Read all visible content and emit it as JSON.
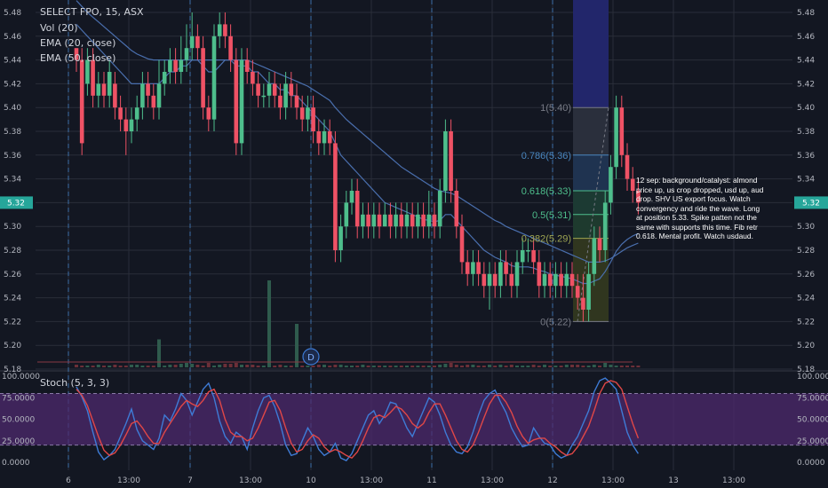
{
  "legend": {
    "symbol": "SELECT FPO, 15, ASX",
    "vol": "Vol (20)",
    "ema20": "EMA (20, close)",
    "ema50": "EMA (50, close)",
    "stoch": "Stoch (5, 3, 3)"
  },
  "colors": {
    "bg": "#131722",
    "grid": "#2a2e39",
    "up": "#4ebe8c",
    "down": "#ef5265",
    "ema": "#4a6fae",
    "stoch_k": "#3e7bd6",
    "stoch_d": "#e04747",
    "stoch_band": "#4d2a6e"
  },
  "price_axis": [
    "5.48",
    "5.46",
    "5.44",
    "5.42",
    "5.40",
    "5.38",
    "5.36",
    "5.34",
    "5.32",
    "5.30",
    "5.28",
    "5.26",
    "5.24",
    "5.22",
    "5.20",
    "5.18"
  ],
  "price_axis_values": [
    5.48,
    5.46,
    5.44,
    5.42,
    5.4,
    5.38,
    5.36,
    5.34,
    5.32,
    5.3,
    5.28,
    5.26,
    5.24,
    5.22,
    5.2,
    5.18
  ],
  "last_price_label": "5.32",
  "stoch_axis": [
    "100.0000",
    "75.0000",
    "50.0000",
    "25.0000",
    "0.0000"
  ],
  "time_axis": [
    "6",
    "13:00",
    "7",
    "13:00",
    "10",
    "13:00",
    "11",
    "13:00",
    "12",
    "13:00",
    "13",
    "13:00"
  ],
  "dividend_marker": "D",
  "fib": [
    {
      "label": "1(5.40)",
      "value": 5.4,
      "color": "#787b86"
    },
    {
      "label": "0.786(5.36)",
      "value": 5.36,
      "color": "#4a87c0"
    },
    {
      "label": "0.618(5.33)",
      "value": 5.33,
      "color": "#4ebe8c"
    },
    {
      "label": "0.5(5.31)",
      "value": 5.31,
      "color": "#4ebe8c"
    },
    {
      "label": "0.382(5.29)",
      "value": 5.29,
      "color": "#9ea552"
    },
    {
      "label": "0(5.22)",
      "value": 5.22,
      "color": "#787b86"
    }
  ],
  "note": "12 sep: background/catalyst: almond price up, us crop dropped, usd up, aud drop. SHV US export focus. Watch convergency and ride the wave. Long at position 5.33. Spike patten not the same with supports this time. Fib retr 0.618. Mental profit. Watch usdaud.",
  "chart_data": {
    "type": "candlestick",
    "y_range": [
      5.18,
      5.48
    ],
    "candles": [
      [
        5.45,
        5.44,
        5.45,
        5.43
      ],
      [
        5.44,
        5.37,
        5.45,
        5.36
      ],
      [
        5.42,
        5.44,
        5.45,
        5.41
      ],
      [
        5.44,
        5.41,
        5.45,
        5.4
      ],
      [
        5.41,
        5.42,
        5.43,
        5.4
      ],
      [
        5.42,
        5.41,
        5.43,
        5.4
      ],
      [
        5.41,
        5.43,
        5.44,
        5.4
      ],
      [
        5.42,
        5.4,
        5.43,
        5.39
      ],
      [
        5.4,
        5.39,
        5.41,
        5.38
      ],
      [
        5.39,
        5.38,
        5.4,
        5.36
      ],
      [
        5.38,
        5.39,
        5.4,
        5.37
      ],
      [
        5.39,
        5.4,
        5.41,
        5.38
      ],
      [
        5.4,
        5.42,
        5.43,
        5.39
      ],
      [
        5.42,
        5.41,
        5.43,
        5.4
      ],
      [
        5.41,
        5.4,
        5.42,
        5.39
      ],
      [
        5.4,
        5.42,
        5.44,
        5.39
      ],
      [
        5.42,
        5.43,
        5.44,
        5.41
      ],
      [
        5.43,
        5.44,
        5.45,
        5.42
      ],
      [
        5.44,
        5.43,
        5.45,
        5.42
      ],
      [
        5.43,
        5.44,
        5.46,
        5.42
      ],
      [
        5.44,
        5.45,
        5.47,
        5.43
      ],
      [
        5.45,
        5.46,
        5.48,
        5.44
      ],
      [
        5.46,
        5.45,
        5.47,
        5.44
      ],
      [
        5.45,
        5.4,
        5.46,
        5.39
      ],
      [
        5.4,
        5.39,
        5.41,
        5.38
      ],
      [
        5.39,
        5.46,
        5.47,
        5.38
      ],
      [
        5.46,
        5.47,
        5.48,
        5.45
      ],
      [
        5.47,
        5.46,
        5.48,
        5.45
      ],
      [
        5.46,
        5.44,
        5.47,
        5.43
      ],
      [
        5.44,
        5.37,
        5.45,
        5.36
      ],
      [
        5.37,
        5.44,
        5.45,
        5.36
      ],
      [
        5.44,
        5.43,
        5.45,
        5.42
      ],
      [
        5.43,
        5.42,
        5.44,
        5.41
      ],
      [
        5.42,
        5.41,
        5.43,
        5.4
      ],
      [
        5.41,
        5.41,
        5.42,
        5.4
      ],
      [
        5.41,
        5.42,
        5.43,
        5.4
      ],
      [
        5.42,
        5.41,
        5.43,
        5.4
      ],
      [
        5.41,
        5.4,
        5.42,
        5.39
      ],
      [
        5.4,
        5.42,
        5.43,
        5.39
      ],
      [
        5.42,
        5.41,
        5.43,
        5.4
      ],
      [
        5.41,
        5.4,
        5.42,
        5.39
      ],
      [
        5.4,
        5.39,
        5.41,
        5.38
      ],
      [
        5.39,
        5.4,
        5.41,
        5.38
      ],
      [
        5.4,
        5.38,
        5.41,
        5.37
      ],
      [
        5.38,
        5.37,
        5.39,
        5.36
      ],
      [
        5.37,
        5.38,
        5.39,
        5.36
      ],
      [
        5.38,
        5.37,
        5.39,
        5.36
      ],
      [
        5.37,
        5.28,
        5.38,
        5.27
      ],
      [
        5.28,
        5.3,
        5.31,
        5.27
      ],
      [
        5.3,
        5.32,
        5.33,
        5.29
      ],
      [
        5.32,
        5.33,
        5.34,
        5.31
      ],
      [
        5.33,
        5.3,
        5.34,
        5.29
      ],
      [
        5.3,
        5.31,
        5.32,
        5.29
      ],
      [
        5.31,
        5.3,
        5.32,
        5.29
      ],
      [
        5.3,
        5.31,
        5.32,
        5.29
      ],
      [
        5.31,
        5.3,
        5.32,
        5.29
      ],
      [
        5.3,
        5.31,
        5.32,
        5.3
      ],
      [
        5.31,
        5.3,
        5.32,
        5.29
      ],
      [
        5.3,
        5.31,
        5.32,
        5.29
      ],
      [
        5.31,
        5.3,
        5.32,
        5.29
      ],
      [
        5.3,
        5.31,
        5.32,
        5.29
      ],
      [
        5.31,
        5.3,
        5.32,
        5.29
      ],
      [
        5.3,
        5.31,
        5.32,
        5.29
      ],
      [
        5.31,
        5.3,
        5.32,
        5.29
      ],
      [
        5.3,
        5.31,
        5.33,
        5.29
      ],
      [
        5.31,
        5.3,
        5.32,
        5.29
      ],
      [
        5.3,
        5.33,
        5.34,
        5.29
      ],
      [
        5.33,
        5.38,
        5.39,
        5.32
      ],
      [
        5.38,
        5.33,
        5.39,
        5.32
      ],
      [
        5.33,
        5.3,
        5.34,
        5.29
      ],
      [
        5.3,
        5.27,
        5.31,
        5.26
      ],
      [
        5.27,
        5.26,
        5.28,
        5.25
      ],
      [
        5.26,
        5.27,
        5.28,
        5.25
      ],
      [
        5.27,
        5.26,
        5.28,
        5.25
      ],
      [
        5.26,
        5.25,
        5.27,
        5.24
      ],
      [
        5.25,
        5.26,
        5.27,
        5.23
      ],
      [
        5.26,
        5.25,
        5.27,
        5.24
      ],
      [
        5.25,
        5.27,
        5.28,
        5.24
      ],
      [
        5.27,
        5.26,
        5.28,
        5.25
      ],
      [
        5.26,
        5.25,
        5.27,
        5.24
      ],
      [
        5.25,
        5.27,
        5.28,
        5.24
      ],
      [
        5.27,
        5.28,
        5.29,
        5.26
      ],
      [
        5.28,
        5.28,
        5.29,
        5.27
      ],
      [
        5.28,
        5.27,
        5.29,
        5.26
      ],
      [
        5.27,
        5.25,
        5.28,
        5.24
      ],
      [
        5.25,
        5.26,
        5.27,
        5.24
      ],
      [
        5.26,
        5.25,
        5.27,
        5.24
      ],
      [
        5.25,
        5.26,
        5.27,
        5.24
      ],
      [
        5.26,
        5.25,
        5.27,
        5.24
      ],
      [
        5.25,
        5.26,
        5.27,
        5.24
      ],
      [
        5.26,
        5.25,
        5.27,
        5.24
      ],
      [
        5.25,
        5.24,
        5.26,
        5.23
      ],
      [
        5.24,
        5.23,
        5.26,
        5.22
      ],
      [
        5.23,
        5.26,
        5.27,
        5.22
      ],
      [
        5.26,
        5.29,
        5.3,
        5.25
      ],
      [
        5.29,
        5.28,
        5.3,
        5.27
      ],
      [
        5.28,
        5.32,
        5.33,
        5.27
      ],
      [
        5.32,
        5.35,
        5.36,
        5.31
      ],
      [
        5.35,
        5.4,
        5.41,
        5.34
      ],
      [
        5.4,
        5.36,
        5.41,
        5.35
      ],
      [
        5.36,
        5.34,
        5.37,
        5.33
      ],
      [
        5.34,
        5.33,
        5.35,
        5.32
      ],
      [
        5.33,
        5.32,
        5.34,
        5.31
      ]
    ],
    "ema20": [
      5.47,
      5.465,
      5.46,
      5.455,
      5.45,
      5.445,
      5.44,
      5.435,
      5.43,
      5.425,
      5.42,
      5.42,
      5.42,
      5.42,
      5.42,
      5.42,
      5.425,
      5.43,
      5.43,
      5.435,
      5.435,
      5.44,
      5.44,
      5.435,
      5.43,
      5.43,
      5.435,
      5.44,
      5.44,
      5.435,
      5.435,
      5.435,
      5.43,
      5.43,
      5.425,
      5.42,
      5.42,
      5.415,
      5.415,
      5.41,
      5.41,
      5.405,
      5.4,
      5.395,
      5.39,
      5.385,
      5.38,
      5.37,
      5.36,
      5.355,
      5.35,
      5.345,
      5.34,
      5.335,
      5.33,
      5.325,
      5.32,
      5.318,
      5.316,
      5.314,
      5.312,
      5.31,
      5.308,
      5.306,
      5.305,
      5.304,
      5.305,
      5.31,
      5.31,
      5.305,
      5.3,
      5.295,
      5.29,
      5.285,
      5.28,
      5.277,
      5.274,
      5.272,
      5.27,
      5.267,
      5.266,
      5.266,
      5.266,
      5.265,
      5.263,
      5.262,
      5.26,
      5.259,
      5.258,
      5.257,
      5.256,
      5.254,
      5.252,
      5.252,
      5.254,
      5.256,
      5.262,
      5.27,
      5.279,
      5.285,
      5.289,
      5.292,
      5.294
    ],
    "ema50": [
      5.49,
      5.485,
      5.48,
      5.476,
      5.472,
      5.468,
      5.464,
      5.46,
      5.456,
      5.452,
      5.448,
      5.445,
      5.443,
      5.441,
      5.44,
      5.44,
      5.44,
      5.44,
      5.44,
      5.44,
      5.44,
      5.44,
      5.44,
      5.44,
      5.44,
      5.44,
      5.44,
      5.44,
      5.44,
      5.44,
      5.44,
      5.44,
      5.438,
      5.436,
      5.434,
      5.432,
      5.43,
      5.428,
      5.426,
      5.424,
      5.422,
      5.42,
      5.418,
      5.415,
      5.412,
      5.409,
      5.406,
      5.4,
      5.395,
      5.39,
      5.386,
      5.382,
      5.378,
      5.374,
      5.37,
      5.366,
      5.362,
      5.358,
      5.354,
      5.35,
      5.347,
      5.344,
      5.341,
      5.338,
      5.335,
      5.332,
      5.33,
      5.329,
      5.328,
      5.326,
      5.323,
      5.32,
      5.317,
      5.314,
      5.311,
      5.308,
      5.305,
      5.303,
      5.3,
      5.298,
      5.296,
      5.294,
      5.292,
      5.29,
      5.288,
      5.286,
      5.284,
      5.282,
      5.28,
      5.278,
      5.276,
      5.274,
      5.272,
      5.27,
      5.27,
      5.27,
      5.271,
      5.273,
      5.276,
      5.279,
      5.282,
      5.284,
      5.286
    ],
    "volume": [
      3,
      2,
      2,
      2,
      3,
      2,
      2,
      3,
      2,
      2,
      3,
      3,
      2,
      2,
      2,
      2,
      2,
      3,
      3,
      4,
      5,
      4,
      3,
      2,
      5,
      2,
      3,
      4,
      4,
      5,
      3,
      3,
      3,
      2,
      2,
      2,
      2,
      3,
      2,
      2,
      2,
      2,
      2,
      2,
      3,
      3,
      2,
      3,
      3,
      2,
      2,
      2,
      3,
      2,
      2,
      2,
      2,
      2,
      2,
      2,
      2,
      2,
      2,
      2,
      2,
      2,
      3,
      4,
      5,
      3,
      2,
      3,
      3,
      2,
      2,
      3,
      2,
      3,
      2,
      3,
      2,
      2,
      2,
      3,
      2,
      3,
      2,
      2,
      2,
      3,
      3,
      3,
      2,
      2,
      3,
      2,
      5,
      3,
      2,
      2,
      2,
      2,
      2
    ],
    "volume_spikes": {
      "35": 28,
      "40": 14,
      "15": 9
    },
    "stoch_k": [
      88,
      76,
      60,
      35,
      12,
      3,
      8,
      15,
      30,
      45,
      62,
      38,
      25,
      20,
      15,
      28,
      55,
      48,
      62,
      80,
      72,
      55,
      70,
      85,
      92,
      75,
      48,
      30,
      22,
      35,
      30,
      15,
      40,
      60,
      75,
      78,
      65,
      45,
      20,
      8,
      10,
      25,
      40,
      30,
      15,
      8,
      12,
      22,
      5,
      2,
      10,
      25,
      40,
      55,
      60,
      45,
      55,
      70,
      68,
      55,
      40,
      30,
      45,
      60,
      75,
      70,
      55,
      35,
      20,
      12,
      10,
      18,
      35,
      55,
      72,
      80,
      84,
      70,
      58,
      40,
      28,
      18,
      20,
      40,
      30,
      22,
      20,
      10,
      5,
      8,
      20,
      30,
      45,
      60,
      82,
      95,
      98,
      92,
      85,
      60,
      35,
      20,
      10
    ],
    "stoch_d": [
      85,
      78,
      66,
      48,
      30,
      14,
      8,
      11,
      20,
      32,
      45,
      48,
      40,
      30,
      22,
      22,
      35,
      45,
      55,
      65,
      72,
      68,
      65,
      72,
      82,
      85,
      72,
      50,
      35,
      30,
      30,
      25,
      28,
      40,
      55,
      70,
      72,
      60,
      40,
      22,
      12,
      15,
      25,
      32,
      28,
      18,
      12,
      15,
      12,
      8,
      5,
      12,
      25,
      40,
      52,
      55,
      52,
      58,
      65,
      62,
      55,
      45,
      40,
      45,
      58,
      68,
      68,
      55,
      40,
      25,
      15,
      12,
      20,
      35,
      52,
      68,
      78,
      78,
      70,
      58,
      42,
      30,
      22,
      26,
      28,
      28,
      22,
      18,
      12,
      8,
      10,
      18,
      30,
      42,
      60,
      80,
      92,
      95,
      93,
      85,
      65,
      45,
      28
    ]
  }
}
